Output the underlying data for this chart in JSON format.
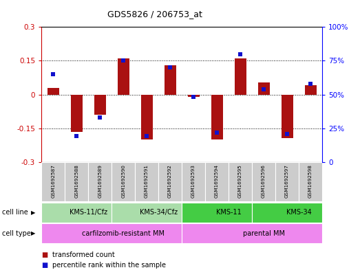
{
  "title": "GDS5826 / 206753_at",
  "samples": [
    "GSM1692587",
    "GSM1692588",
    "GSM1692589",
    "GSM1692590",
    "GSM1692591",
    "GSM1692592",
    "GSM1692593",
    "GSM1692594",
    "GSM1692595",
    "GSM1692596",
    "GSM1692597",
    "GSM1692598"
  ],
  "transformed_count": [
    0.03,
    -0.165,
    -0.09,
    0.16,
    -0.2,
    0.13,
    -0.01,
    -0.2,
    0.16,
    0.055,
    -0.195,
    0.04
  ],
  "percentile_rank": [
    65,
    19,
    33,
    75,
    19,
    70,
    48,
    22,
    80,
    54,
    21,
    58
  ],
  "ylim_left": [
    -0.3,
    0.3
  ],
  "ylim_right": [
    0,
    100
  ],
  "yticks_left": [
    -0.3,
    -0.15,
    0.0,
    0.15,
    0.3
  ],
  "yticks_right": [
    0,
    25,
    50,
    75,
    100
  ],
  "ytick_labels_left": [
    "-0.3",
    "-0.15",
    "0",
    "0.15",
    "0.3"
  ],
  "ytick_labels_right": [
    "0",
    "25%",
    "50%",
    "75%",
    "100%"
  ],
  "hlines": [
    0.15,
    0.0,
    -0.15
  ],
  "bar_color": "#aa1111",
  "dot_color": "#1111cc",
  "cell_line_groups": [
    {
      "label": "KMS-11/Cfz",
      "start": 0,
      "end": 3,
      "color": "#aaddaa"
    },
    {
      "label": "KMS-34/Cfz",
      "start": 3,
      "end": 6,
      "color": "#aaddaa"
    },
    {
      "label": "KMS-11",
      "start": 6,
      "end": 9,
      "color": "#44cc44"
    },
    {
      "label": "KMS-34",
      "start": 9,
      "end": 12,
      "color": "#44cc44"
    }
  ],
  "cell_type_groups": [
    {
      "label": "carfilzomib-resistant MM",
      "start": 0,
      "end": 6,
      "color": "#ee88ee"
    },
    {
      "label": "parental MM",
      "start": 6,
      "end": 12,
      "color": "#ee88ee"
    }
  ],
  "cell_line_label": "cell line",
  "cell_type_label": "cell type",
  "legend_items": [
    {
      "color": "#aa1111",
      "label": "transformed count"
    },
    {
      "color": "#1111cc",
      "label": "percentile rank within the sample"
    }
  ],
  "background_color": "#ffffff",
  "sample_box_color": "#cccccc",
  "bar_width": 0.5,
  "dot_size": 18,
  "figsize": [
    5.23,
    3.93
  ],
  "dpi": 100
}
